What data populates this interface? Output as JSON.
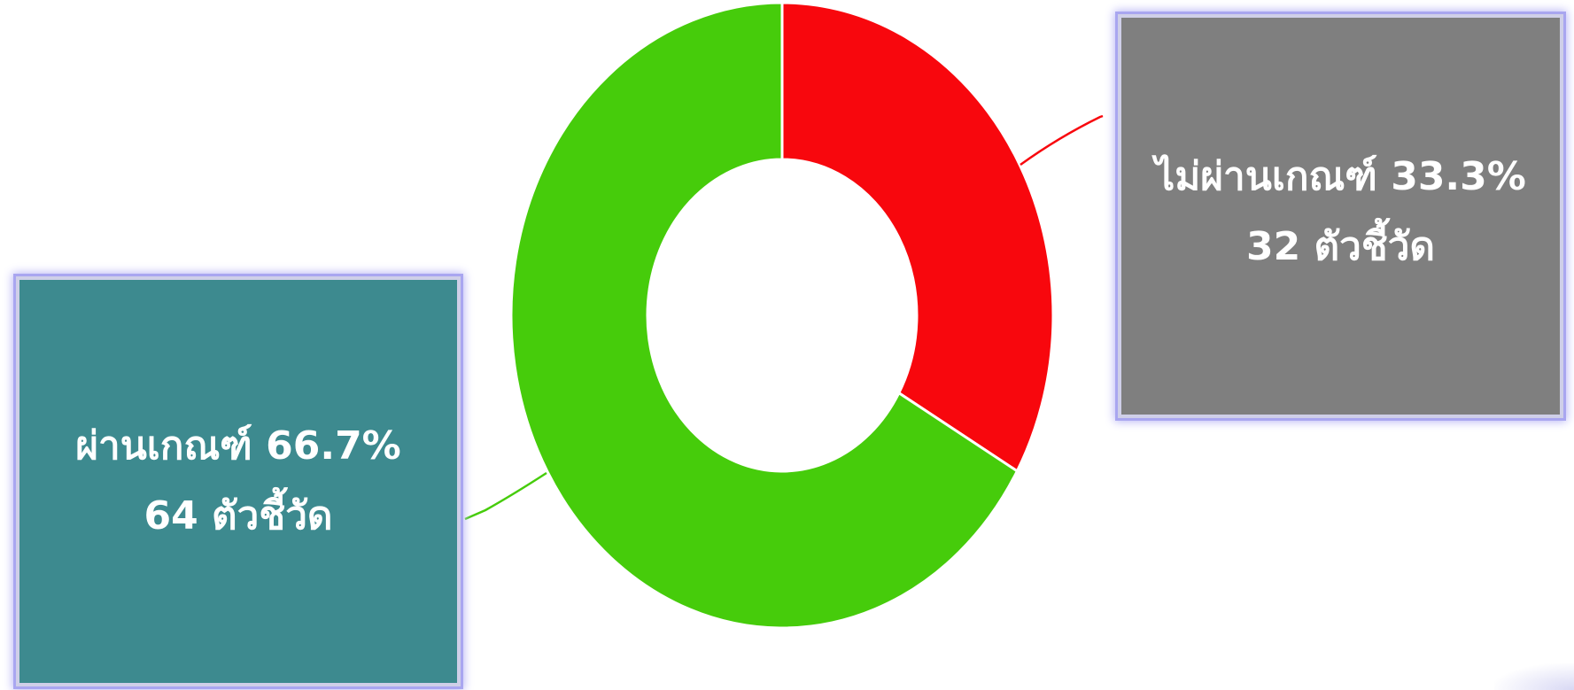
{
  "chart_data": {
    "type": "pie",
    "donut": true,
    "title": "",
    "slices": [
      {
        "key": "fail",
        "label": "ไม่ผ่านเกณฑ์",
        "percent": 33.3,
        "percent_text": "33.3%",
        "count": 32,
        "count_text": "32 ตัวชี้วัด",
        "color": "#f8070d",
        "callout_color": "#7f7f7f"
      },
      {
        "key": "pass",
        "label": "ผ่านเกณฑ์",
        "percent": 66.7,
        "percent_text": "66.7%",
        "count": 64,
        "count_text": "64 ตัวชี้วัด",
        "color": "#46cc0b",
        "callout_color": "#3d8a8f"
      }
    ],
    "start_angle": "12 o'clock",
    "direction": "clockwise",
    "legend": "none"
  }
}
